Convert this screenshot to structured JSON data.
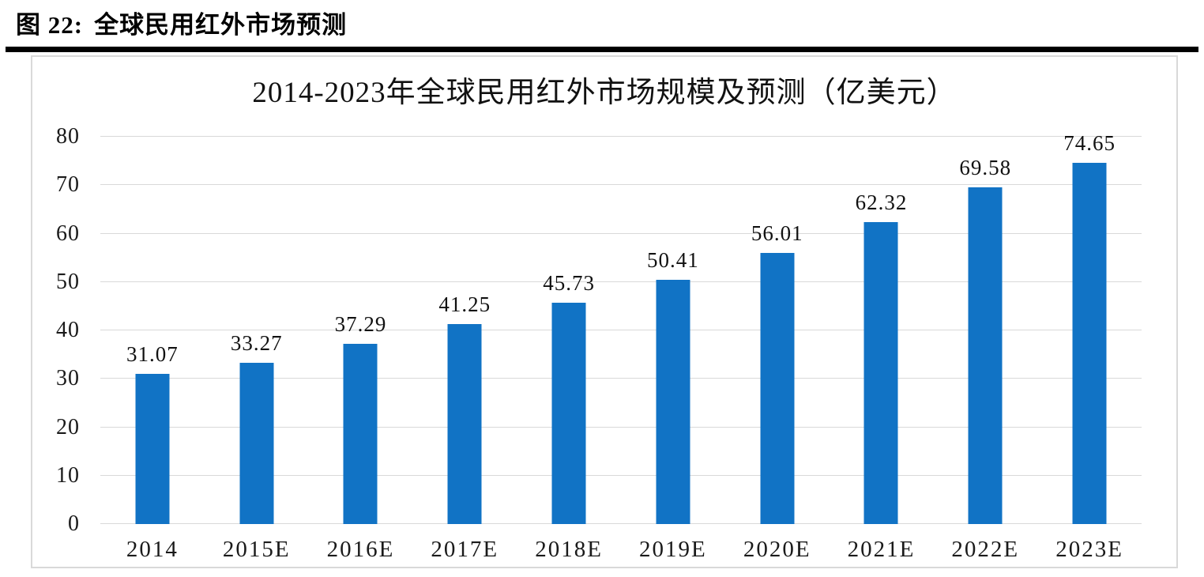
{
  "figure_header": {
    "label": "图 22:",
    "title": "全球民用红外市场预测"
  },
  "chart_data": {
    "type": "bar",
    "title": "2014-2023年全球民用红外市场规模及预测（亿美元）",
    "categories": [
      "2014",
      "2015E",
      "2016E",
      "2017E",
      "2018E",
      "2019E",
      "2020E",
      "2021E",
      "2022E",
      "2023E"
    ],
    "values": [
      31.07,
      33.27,
      37.29,
      41.25,
      45.73,
      50.41,
      56.01,
      62.32,
      69.58,
      74.65
    ],
    "data_labels": [
      "31.07",
      "33.27",
      "37.29",
      "41.25",
      "45.73",
      "50.41",
      "56.01",
      "62.32",
      "69.58",
      "74.65"
    ],
    "xlabel": "",
    "ylabel": "",
    "ylim": [
      0,
      80
    ],
    "yticks": [
      0,
      10,
      20,
      30,
      40,
      50,
      60,
      70,
      80
    ],
    "grid": true,
    "legend": "none",
    "bar_color": "#1173c5",
    "gridline_color": "#d9d9d9",
    "border_color": "#d9d9d9"
  }
}
